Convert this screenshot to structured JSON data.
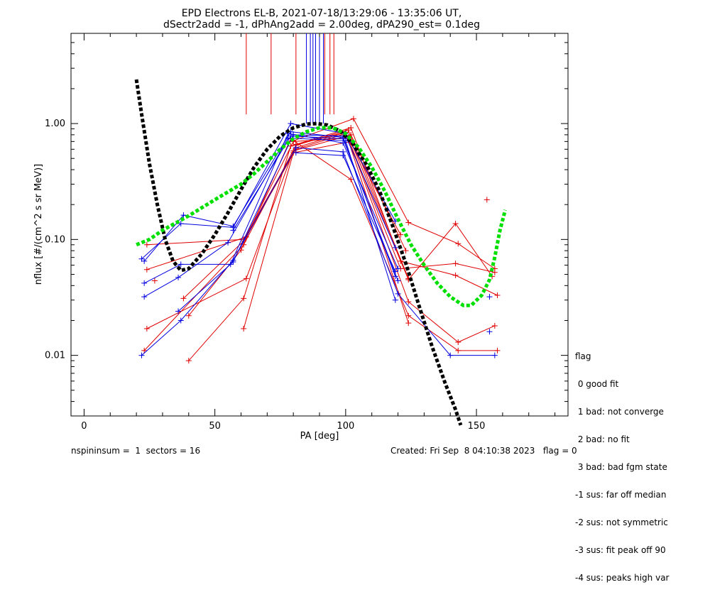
{
  "header": {
    "title_line1": "EPD Electrons EL-B, 2021-07-18/13:29:06 - 13:35:06 UT,",
    "title_line2": "dSectr2add = -1, dPhAng2add = 2.00deg, dPA290_est=   0.1deg"
  },
  "footer": {
    "left": "nspininsum =  1  sectors = 16",
    "right": "Created: Fri Sep  8 04:10:38 2023   flag = 0"
  },
  "legend": {
    "title": "flag",
    "items": [
      " 0 good fit",
      " 1 bad: not converge",
      " 2 bad: no fit",
      " 3 bad: bad fgm state",
      "-1 sus: far off median",
      "-2 sus: not symmetric",
      "-3 sus: fit peak off 90",
      "-4 sus: peaks high var"
    ]
  },
  "colors": {
    "red": "#e00000",
    "blue": "#0000e0",
    "black": "#000000",
    "green": "#00e000"
  },
  "chart_data": {
    "type": "line",
    "xlabel": "PA [deg]",
    "ylabel": "nflux [#/(cm^2 s sr MeV)]",
    "xlim": [
      -5,
      185
    ],
    "ylim": [
      0.003,
      6.0
    ],
    "ylog": true,
    "xticks": [
      0,
      50,
      100,
      150
    ],
    "xtick_labels": [
      "0",
      "50",
      "100",
      "150"
    ],
    "yticks": [
      0.01,
      0.1,
      1.0
    ],
    "ytick_labels": [
      "0.01",
      "0.10",
      "1.00"
    ],
    "grid": false,
    "vertical_markers": {
      "red": [
        62,
        71.5,
        81,
        92,
        94,
        95.5
      ],
      "blue": [
        85,
        86.5,
        87.5,
        88.5,
        90,
        91.5
      ],
      "y_bottom_red": 1.2,
      "y_bottom_blue": 1.0
    },
    "series": [
      {
        "color": "red",
        "points": [
          [
            24,
            0.09
          ],
          [
            61,
            0.1
          ],
          [
            81,
            0.62
          ],
          [
            100,
            0.84
          ],
          [
            124,
            0.019
          ]
        ]
      },
      {
        "color": "red",
        "points": [
          [
            24,
            0.055
          ],
          [
            62,
            0.105
          ],
          [
            81,
            0.6
          ],
          [
            100,
            0.82
          ],
          [
            121,
            0.11
          ]
        ]
      },
      {
        "color": "red",
        "points": [
          [
            23,
            0.011
          ],
          [
            61,
            0.09
          ],
          [
            81,
            0.65
          ],
          [
            101,
            0.88
          ],
          [
            124,
            0.046
          ]
        ]
      },
      {
        "color": "red",
        "points": [
          [
            24,
            0.017
          ],
          [
            62,
            0.046
          ],
          [
            80,
            0.58
          ],
          [
            102,
            0.8
          ],
          [
            123,
            0.08
          ]
        ]
      },
      {
        "color": "red",
        "points": [
          [
            38,
            0.031
          ],
          [
            61,
            0.097
          ],
          [
            80,
            0.7
          ],
          [
            101,
            0.75
          ],
          [
            124,
            0.029
          ],
          [
            143,
            0.013
          ],
          [
            157,
            0.018
          ]
        ]
      },
      {
        "color": "red",
        "points": [
          [
            40,
            0.022
          ],
          [
            60,
            0.081
          ],
          [
            79,
            0.74
          ],
          [
            102,
            0.33
          ],
          [
            124,
            0.022
          ],
          [
            143,
            0.011
          ],
          [
            158,
            0.011
          ]
        ]
      },
      {
        "color": "red",
        "points": [
          [
            40,
            0.009
          ],
          [
            61,
            0.031
          ],
          [
            79,
            0.64
          ],
          [
            100,
            0.84
          ],
          [
            121,
            0.056
          ],
          [
            142,
            0.062
          ],
          [
            157,
            0.052
          ]
        ]
      },
      {
        "color": "red",
        "points": [
          [
            61,
            0.017
          ],
          [
            80,
            0.56
          ],
          [
            102,
            0.7
          ],
          [
            124,
            0.045
          ],
          [
            142,
            0.137
          ],
          [
            156,
            0.048
          ]
        ]
      },
      {
        "color": "red",
        "points": [
          [
            80,
            0.71
          ],
          [
            103,
            1.1
          ],
          [
            124,
            0.14
          ],
          [
            143,
            0.092
          ],
          [
            157,
            0.056
          ]
        ]
      },
      {
        "color": "red",
        "points": [
          [
            81,
            0.66
          ],
          [
            102,
            0.92
          ],
          [
            121,
            0.065
          ],
          [
            142,
            0.049
          ],
          [
            158,
            0.033
          ]
        ]
      },
      {
        "color": "red",
        "points": [
          [
            27,
            0.044
          ]
        ]
      },
      {
        "color": "red",
        "points": [
          [
            154,
            0.22
          ]
        ]
      },
      {
        "color": "blue",
        "points": [
          [
            22,
            0.068
          ],
          [
            37,
            0.137
          ],
          [
            57,
            0.127
          ],
          [
            79,
            1.0
          ],
          [
            100,
            0.82
          ],
          [
            119,
            0.144
          ]
        ]
      },
      {
        "color": "blue",
        "points": [
          [
            23,
            0.065
          ],
          [
            38,
            0.162
          ],
          [
            57,
            0.13
          ],
          [
            79,
            0.85
          ],
          [
            99,
            0.76
          ],
          [
            119,
            0.048
          ]
        ]
      },
      {
        "color": "blue",
        "points": [
          [
            23,
            0.042
          ],
          [
            37,
            0.061
          ],
          [
            56,
            0.061
          ],
          [
            78,
            0.82
          ],
          [
            99,
            0.68
          ],
          [
            120,
            0.056
          ]
        ]
      },
      {
        "color": "blue",
        "points": [
          [
            23,
            0.032
          ],
          [
            36,
            0.047
          ],
          [
            55,
            0.094
          ],
          [
            78,
            0.75
          ],
          [
            100,
            0.71
          ],
          [
            119,
            0.03
          ]
        ]
      },
      {
        "color": "blue",
        "points": [
          [
            22,
            0.01
          ],
          [
            37,
            0.02
          ],
          [
            57,
            0.066
          ],
          [
            81,
            0.62
          ],
          [
            99,
            0.57
          ],
          [
            120,
            0.034
          ],
          [
            140,
            0.01
          ],
          [
            157,
            0.01
          ]
        ]
      },
      {
        "color": "blue",
        "points": [
          [
            36,
            0.024
          ],
          [
            57,
            0.064
          ],
          [
            80,
            0.8
          ],
          [
            100,
            0.78
          ],
          [
            119,
            0.085
          ]
        ]
      },
      {
        "color": "blue",
        "points": [
          [
            57,
            0.12
          ],
          [
            79,
            0.78
          ],
          [
            99,
            0.74
          ],
          [
            120,
            0.044
          ]
        ]
      },
      {
        "color": "blue",
        "points": [
          [
            81,
            0.56
          ],
          [
            99,
            0.53
          ],
          [
            119,
            0.053
          ]
        ]
      },
      {
        "color": "blue",
        "points": [
          [
            155,
            0.032
          ]
        ]
      },
      {
        "color": "blue",
        "points": [
          [
            155,
            0.016
          ]
        ]
      },
      {
        "color": "black",
        "dashed": true,
        "thick": true,
        "points": [
          [
            20,
            2.4
          ],
          [
            22,
            1.2
          ],
          [
            25,
            0.45
          ],
          [
            28,
            0.2
          ],
          [
            31,
            0.1
          ],
          [
            34,
            0.065
          ],
          [
            37,
            0.054
          ],
          [
            40,
            0.056
          ],
          [
            45,
            0.075
          ],
          [
            50,
            0.11
          ],
          [
            55,
            0.17
          ],
          [
            60,
            0.27
          ],
          [
            65,
            0.42
          ],
          [
            70,
            0.6
          ],
          [
            75,
            0.78
          ],
          [
            80,
            0.92
          ],
          [
            85,
            0.99
          ],
          [
            89,
            1.0
          ],
          [
            93,
            0.97
          ],
          [
            98,
            0.86
          ],
          [
            103,
            0.66
          ],
          [
            108,
            0.44
          ],
          [
            113,
            0.26
          ],
          [
            118,
            0.13
          ],
          [
            123,
            0.062
          ],
          [
            128,
            0.027
          ],
          [
            133,
            0.012
          ],
          [
            138,
            0.0058
          ],
          [
            142,
            0.0034
          ],
          [
            144,
            0.0025
          ]
        ]
      },
      {
        "color": "green",
        "dashed": true,
        "thick": true,
        "points": [
          [
            20,
            0.09
          ],
          [
            25,
            0.1
          ],
          [
            30,
            0.12
          ],
          [
            40,
            0.16
          ],
          [
            50,
            0.22
          ],
          [
            60,
            0.3
          ],
          [
            65,
            0.37
          ],
          [
            70,
            0.47
          ],
          [
            75,
            0.6
          ],
          [
            80,
            0.74
          ],
          [
            85,
            0.85
          ],
          [
            90,
            0.92
          ],
          [
            95,
            0.92
          ],
          [
            100,
            0.82
          ],
          [
            105,
            0.62
          ],
          [
            110,
            0.42
          ],
          [
            115,
            0.26
          ],
          [
            120,
            0.15
          ],
          [
            125,
            0.09
          ],
          [
            130,
            0.06
          ],
          [
            135,
            0.042
          ],
          [
            140,
            0.032
          ],
          [
            145,
            0.027
          ],
          [
            148,
            0.027
          ],
          [
            152,
            0.033
          ],
          [
            155,
            0.045
          ],
          [
            157,
            0.07
          ],
          [
            159,
            0.12
          ],
          [
            161,
            0.18
          ]
        ]
      }
    ]
  }
}
